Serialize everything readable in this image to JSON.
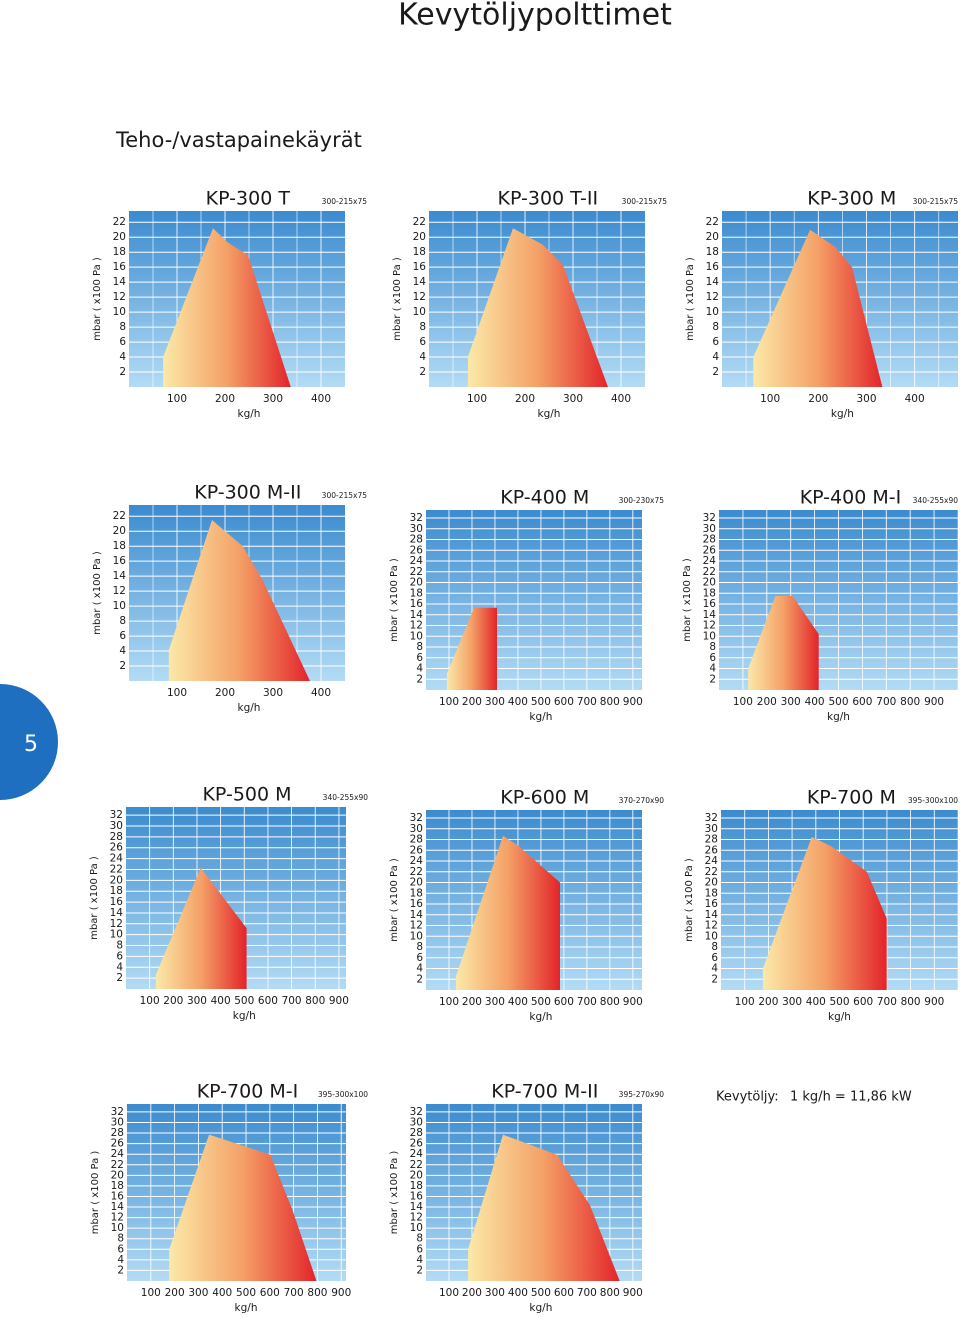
{
  "header": {
    "title": "Kevytöljypolttimet",
    "subtitle": "Teho-/vastapainekäyrät"
  },
  "page_number": 5,
  "note": {
    "label": "Kevytöljy:",
    "text": "1 kg/h = 11,86 kW"
  },
  "chart_data": [
    {
      "type": "area",
      "title": "KP-300 T",
      "subtitle": "300-215x75",
      "x_label": "kg/h",
      "y_label": "mbar ( x100 Pa )",
      "x": [
        71,
        71,
        175,
        206,
        248,
        337
      ],
      "values": [
        0,
        4,
        21.2,
        19.3,
        17.6,
        0
      ],
      "xlim": [
        0,
        450
      ],
      "ylim": [
        0,
        23.5
      ],
      "xticks": [
        100,
        200,
        300,
        400
      ],
      "yticks": [
        2,
        4,
        6,
        8,
        10,
        12,
        14,
        16,
        18,
        20,
        22
      ],
      "grid": true
    },
    {
      "type": "area",
      "title": "KP-300 T-II",
      "subtitle": "300-215x75",
      "x_label": "kg/h",
      "y_label": "mbar ( x100 Pa )",
      "x": [
        81,
        81,
        175,
        237,
        279,
        373
      ],
      "values": [
        0,
        4,
        21.2,
        19,
        16.3,
        0
      ],
      "xlim": [
        0,
        450
      ],
      "ylim": [
        0,
        23.5
      ],
      "xticks": [
        100,
        200,
        300,
        400
      ],
      "yticks": [
        2,
        4,
        6,
        8,
        10,
        12,
        14,
        16,
        18,
        20,
        22
      ],
      "grid": true
    },
    {
      "type": "area",
      "title": "KP-300 M",
      "subtitle": "300-215x75",
      "x_label": "kg/h",
      "y_label": "mbar ( x100 Pa )",
      "x": [
        65,
        65,
        183,
        235,
        270,
        333
      ],
      "values": [
        0,
        4,
        21,
        18.7,
        16,
        0
      ],
      "xlim": [
        0,
        490
      ],
      "ylim": [
        0,
        23.5
      ],
      "xticks": [
        100,
        200,
        300,
        400
      ],
      "yticks": [
        2,
        4,
        6,
        8,
        10,
        12,
        14,
        16,
        18,
        20,
        22
      ],
      "grid": true
    },
    {
      "type": "area",
      "title": "KP-300 M-II",
      "subtitle": "300-215x75",
      "x_label": "kg/h",
      "y_label": "mbar ( x100 Pa )",
      "x": [
        83,
        83,
        173,
        237,
        279,
        377
      ],
      "values": [
        0,
        4.1,
        21.5,
        18,
        13.4,
        0
      ],
      "xlim": [
        0,
        450
      ],
      "ylim": [
        0,
        23.5
      ],
      "xticks": [
        100,
        200,
        300,
        400
      ],
      "yticks": [
        2,
        4,
        6,
        8,
        10,
        12,
        14,
        16,
        18,
        20,
        22
      ],
      "grid": true
    },
    {
      "type": "area",
      "title": "KP-400 M",
      "subtitle": "300-230x75",
      "x_label": "kg/h",
      "y_label": "mbar ( x100 Pa )",
      "x": [
        91,
        91,
        209,
        309,
        309
      ],
      "values": [
        0,
        3,
        15.3,
        15.3,
        0
      ],
      "xlim": [
        0,
        940
      ],
      "ylim": [
        0,
        33.5
      ],
      "xticks": [
        100,
        200,
        300,
        400,
        500,
        600,
        700,
        800,
        900
      ],
      "yticks": [
        2,
        4,
        6,
        8,
        10,
        12,
        14,
        16,
        18,
        20,
        22,
        24,
        26,
        28,
        30,
        32
      ],
      "grid": true
    },
    {
      "type": "area",
      "title": "KP-400 M-I",
      "subtitle": "340-255x90",
      "x_label": "kg/h",
      "y_label": "mbar ( x100 Pa )",
      "x": [
        122,
        122,
        236,
        308,
        417,
        417
      ],
      "values": [
        0,
        4,
        17.5,
        17.5,
        10.4,
        0
      ],
      "xlim": [
        0,
        1000
      ],
      "ylim": [
        0,
        33.5
      ],
      "xticks": [
        100,
        200,
        300,
        400,
        500,
        600,
        700,
        800,
        900
      ],
      "yticks": [
        2,
        4,
        6,
        8,
        10,
        12,
        14,
        16,
        18,
        20,
        22,
        24,
        26,
        28,
        30,
        32
      ],
      "grid": true
    },
    {
      "type": "area",
      "title": "KP-500 M",
      "subtitle": "340-255x90",
      "x_label": "kg/h",
      "y_label": "mbar ( x100 Pa )",
      "x": [
        126,
        126,
        316,
        510,
        510
      ],
      "values": [
        0,
        2.6,
        22.3,
        11.2,
        0
      ],
      "xlim": [
        0,
        930
      ],
      "ylim": [
        0,
        33.5
      ],
      "xticks": [
        100,
        200,
        300,
        400,
        500,
        600,
        700,
        800,
        900
      ],
      "yticks": [
        2,
        4,
        6,
        8,
        10,
        12,
        14,
        16,
        18,
        20,
        22,
        24,
        26,
        28,
        30,
        32
      ],
      "grid": true
    },
    {
      "type": "area",
      "title": "KP-600 M",
      "subtitle": "370-270x90",
      "x_label": "kg/h",
      "y_label": "mbar ( x100 Pa )",
      "x": [
        130,
        130,
        335,
        400,
        583,
        583
      ],
      "values": [
        0,
        2.5,
        28.7,
        26.9,
        20,
        0
      ],
      "xlim": [
        0,
        940
      ],
      "ylim": [
        0,
        33.5
      ],
      "xticks": [
        100,
        200,
        300,
        400,
        500,
        600,
        700,
        800,
        900
      ],
      "yticks": [
        2,
        4,
        6,
        8,
        10,
        12,
        14,
        16,
        18,
        20,
        22,
        24,
        26,
        28,
        30,
        32
      ],
      "grid": true
    },
    {
      "type": "area",
      "title": "KP-700 M",
      "subtitle": "395-300x100",
      "x_label": "kg/h",
      "y_label": "mbar ( x100 Pa )",
      "x": [
        177,
        177,
        383,
        467,
        615,
        699,
        699
      ],
      "values": [
        0,
        4,
        28.5,
        26.7,
        22,
        13.3,
        0
      ],
      "xlim": [
        0,
        1000
      ],
      "ylim": [
        0,
        33.5
      ],
      "xticks": [
        100,
        200,
        300,
        400,
        500,
        600,
        700,
        800,
        900
      ],
      "yticks": [
        2,
        4,
        6,
        8,
        10,
        12,
        14,
        16,
        18,
        20,
        22,
        24,
        26,
        28,
        30,
        32
      ],
      "grid": true
    },
    {
      "type": "area",
      "title": "KP-700 M-I",
      "subtitle": "395-300x100",
      "x_label": "kg/h",
      "y_label": "mbar ( x100 Pa )",
      "x": [
        177,
        177,
        345,
        602,
        695,
        796
      ],
      "values": [
        0,
        5.9,
        27.7,
        23.9,
        13.5,
        0
      ],
      "xlim": [
        0,
        920
      ],
      "ylim": [
        0,
        33.5
      ],
      "xticks": [
        100,
        200,
        300,
        400,
        500,
        600,
        700,
        800,
        900
      ],
      "yticks": [
        2,
        4,
        6,
        8,
        10,
        12,
        14,
        16,
        18,
        20,
        22,
        24,
        26,
        28,
        30,
        32
      ],
      "grid": true
    },
    {
      "type": "area",
      "title": "KP-700 M-II",
      "subtitle": "395-270x90",
      "x_label": "kg/h",
      "y_label": "mbar ( x100 Pa )",
      "x": [
        183,
        183,
        335,
        570,
        713,
        843
      ],
      "values": [
        0,
        6,
        27.7,
        23.9,
        14.4,
        0
      ],
      "xlim": [
        0,
        940
      ],
      "ylim": [
        0,
        33.5
      ],
      "xticks": [
        100,
        200,
        300,
        400,
        500,
        600,
        700,
        800,
        900
      ],
      "yticks": [
        2,
        4,
        6,
        8,
        10,
        12,
        14,
        16,
        18,
        20,
        22,
        24,
        26,
        28,
        30,
        32
      ],
      "grid": true
    }
  ]
}
